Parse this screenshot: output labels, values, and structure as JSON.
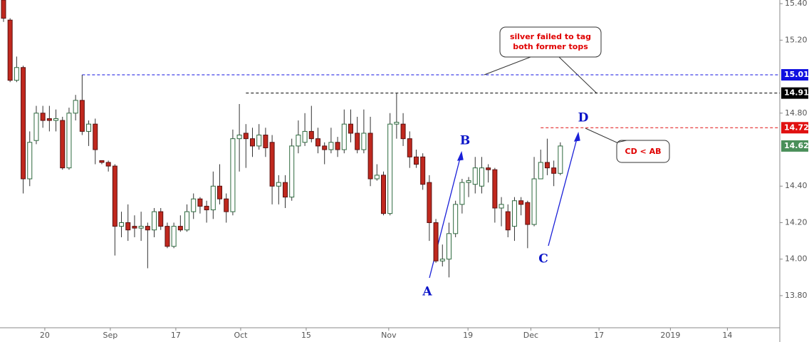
{
  "chart_data": {
    "type": "candlestick",
    "ylim": [
      13.624,
      15.42
    ],
    "yticks": [
      {
        "value": 13.8,
        "label": "13.80"
      },
      {
        "value": 14.0,
        "label": "14.00"
      },
      {
        "value": 14.2,
        "label": "14.20"
      },
      {
        "value": 14.4,
        "label": "14.40"
      },
      {
        "value": 14.8,
        "label": "14.80"
      },
      {
        "value": 15.2,
        "label": "15.20"
      },
      {
        "value": 15.4,
        "label": "15.40"
      }
    ],
    "xlim": [
      -0.54,
      118.5
    ],
    "xticks": [
      {
        "value": 6.3,
        "label": "20"
      },
      {
        "value": 16.3,
        "label": "Sep"
      },
      {
        "value": 26.3,
        "label": "17"
      },
      {
        "value": 36.2,
        "label": "Oct"
      },
      {
        "value": 46.2,
        "label": "15"
      },
      {
        "value": 58.8,
        "label": "Nov"
      },
      {
        "value": 70.9,
        "label": "19"
      },
      {
        "value": 80.5,
        "label": "Dec"
      },
      {
        "value": 90.9,
        "label": "17"
      },
      {
        "value": 101.8,
        "label": "2019"
      },
      {
        "value": 110.5,
        "label": "14"
      }
    ],
    "up_color": "#ffffff",
    "up_border": "#2d6a3e",
    "down_color": "#c0281e",
    "down_border": "#5a1010",
    "open": [
      15.42,
      15.31,
      14.98,
      15.05,
      14.44,
      14.65,
      14.8,
      14.77,
      14.76,
      14.76,
      14.5,
      14.8,
      14.87,
      14.7,
      14.74,
      14.54,
      14.53,
      14.51,
      14.18,
      14.2,
      14.18,
      14.17,
      14.18,
      14.16,
      14.26,
      14.18,
      14.07,
      14.18,
      14.16,
      14.26,
      14.33,
      14.29,
      14.27,
      14.4,
      14.33,
      14.26,
      14.66,
      14.69,
      14.66,
      14.62,
      14.68,
      14.64,
      14.4,
      14.42,
      14.34,
      14.62,
      14.64,
      14.7,
      14.66,
      14.62,
      14.6,
      14.64,
      14.6,
      14.74,
      14.69,
      14.6,
      14.69,
      14.44,
      14.46,
      14.25,
      14.74,
      14.74,
      14.66,
      14.56,
      14.56,
      14.42,
      14.2,
      13.99,
      14.0,
      14.14,
      14.3,
      14.42,
      14.41,
      14.4,
      14.5,
      14.49,
      14.28,
      14.26,
      14.18,
      14.32,
      14.31,
      14.19,
      14.44,
      14.53,
      14.5,
      14.47
    ],
    "high": [
      15.42,
      15.32,
      15.11,
      15.06,
      14.7,
      14.84,
      14.84,
      14.84,
      14.82,
      14.78,
      14.83,
      14.9,
      15.01,
      14.76,
      14.77,
      14.54,
      14.54,
      14.52,
      14.26,
      14.3,
      14.24,
      14.26,
      14.2,
      14.28,
      14.28,
      14.2,
      14.2,
      14.24,
      14.3,
      14.36,
      14.34,
      14.32,
      14.48,
      14.52,
      14.36,
      14.71,
      14.85,
      14.74,
      14.72,
      14.74,
      14.72,
      14.68,
      14.46,
      14.46,
      14.66,
      14.76,
      14.8,
      14.84,
      14.72,
      14.64,
      14.72,
      14.67,
      14.82,
      14.82,
      14.78,
      14.82,
      14.78,
      14.52,
      14.48,
      14.8,
      14.91,
      14.8,
      14.7,
      14.6,
      14.58,
      14.46,
      14.22,
      14.08,
      14.2,
      14.32,
      14.44,
      14.45,
      14.56,
      14.56,
      14.52,
      14.5,
      14.34,
      14.3,
      14.34,
      14.34,
      14.32,
      14.56,
      14.6,
      14.66,
      14.54,
      14.64
    ],
    "low": [
      15.3,
      14.97,
      14.97,
      14.36,
      14.4,
      14.63,
      14.72,
      14.7,
      14.7,
      14.49,
      14.49,
      14.76,
      14.68,
      14.62,
      14.52,
      14.52,
      14.48,
      14.02,
      14.12,
      14.1,
      14.12,
      14.1,
      13.95,
      14.12,
      14.16,
      14.06,
      14.06,
      14.15,
      14.15,
      14.22,
      14.25,
      14.2,
      14.22,
      14.3,
      14.2,
      14.24,
      14.48,
      14.5,
      14.56,
      14.6,
      14.56,
      14.3,
      14.3,
      14.28,
      14.32,
      14.58,
      14.62,
      14.64,
      14.58,
      14.52,
      14.58,
      14.56,
      14.58,
      14.64,
      14.58,
      14.58,
      14.4,
      14.43,
      14.24,
      14.24,
      14.66,
      14.62,
      14.5,
      14.5,
      14.38,
      14.1,
      13.98,
      13.96,
      13.9,
      14.12,
      14.25,
      14.34,
      14.36,
      14.36,
      14.42,
      14.2,
      14.18,
      14.12,
      14.1,
      14.24,
      14.06,
      14.18,
      14.44,
      14.46,
      14.4,
      14.46
    ],
    "close": [
      15.32,
      14.98,
      15.05,
      14.44,
      14.64,
      14.8,
      14.76,
      14.76,
      14.77,
      14.5,
      14.8,
      14.87,
      14.7,
      14.74,
      14.6,
      14.53,
      14.51,
      14.18,
      14.2,
      14.16,
      14.17,
      14.18,
      14.16,
      14.26,
      14.18,
      14.07,
      14.18,
      14.16,
      14.26,
      14.33,
      14.29,
      14.27,
      14.4,
      14.33,
      14.26,
      14.66,
      14.68,
      14.66,
      14.62,
      14.68,
      14.61,
      14.4,
      14.42,
      14.34,
      14.62,
      14.68,
      14.7,
      14.66,
      14.62,
      14.6,
      14.64,
      14.6,
      14.74,
      14.69,
      14.6,
      14.69,
      14.44,
      14.46,
      14.25,
      14.74,
      14.75,
      14.66,
      14.56,
      14.52,
      14.41,
      14.2,
      13.99,
      14.0,
      14.14,
      14.3,
      14.42,
      14.43,
      14.5,
      14.5,
      14.49,
      14.28,
      14.3,
      14.16,
      14.32,
      14.3,
      14.19,
      14.44,
      14.53,
      14.5,
      14.47,
      14.62
    ],
    "levels": [
      {
        "value": 15.01,
        "label": "15.01",
        "color": "#1010e0",
        "from": 12
      },
      {
        "value": 14.91,
        "label": "14.91",
        "color": "#000000",
        "from": 37
      },
      {
        "value": 14.72,
        "label": "14.72",
        "color": "#e01010",
        "from": 82
      },
      {
        "value": 14.62,
        "label": "14.62",
        "color": "#4a8f5a"
      }
    ],
    "annotations": [
      "silver failed to tag",
      "both former tops",
      "CD < AB"
    ],
    "wave_labels": [
      "A",
      "B",
      "C",
      "D"
    ]
  }
}
